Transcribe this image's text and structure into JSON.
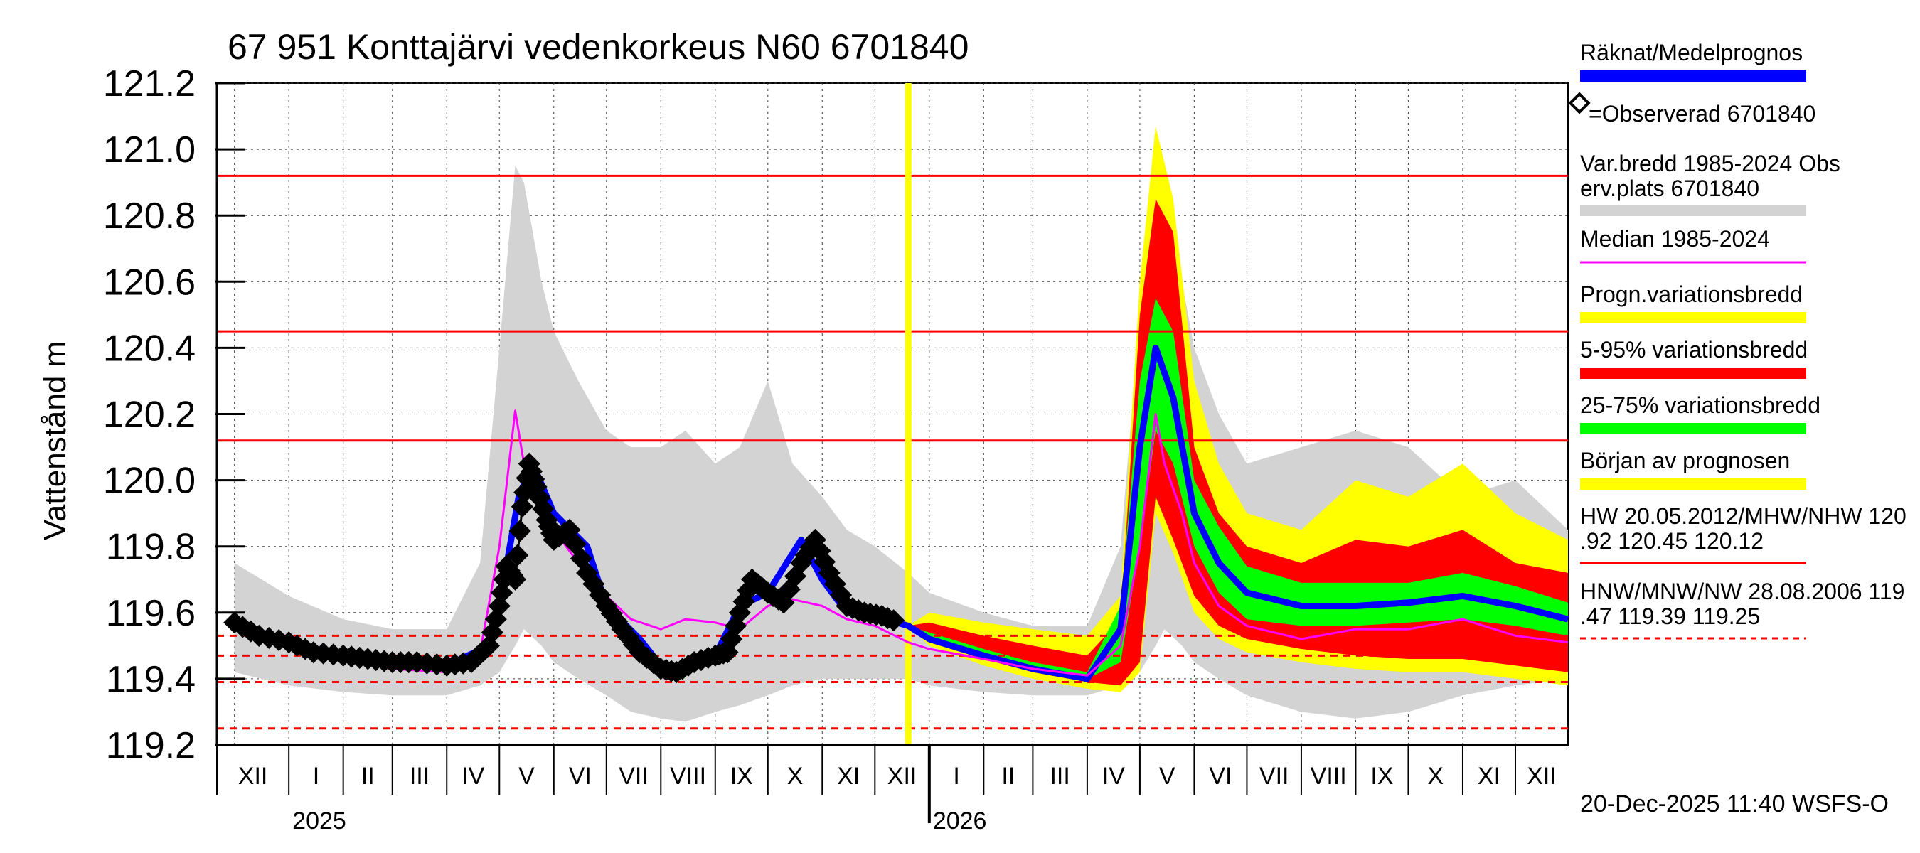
{
  "chart_data": {
    "type": "area",
    "title": "67 951 Konttajärvi vedenkorkeus N60 6701840",
    "ylabel": "Vattenstånd m",
    "ylim": [
      119.2,
      121.2
    ],
    "yticks": [
      "121.2",
      "121.0",
      "120.8",
      "120.6",
      "120.4",
      "120.2",
      "120.0",
      "119.8",
      "119.6",
      "119.4",
      "119.2"
    ],
    "months": [
      "XII",
      "I",
      "II",
      "III",
      "IV",
      "V",
      "VI",
      "VII",
      "VIII",
      "IX",
      "X",
      "XI",
      "XII",
      "I",
      "II",
      "III",
      "IV",
      "V",
      "VI",
      "VII",
      "VIII",
      "IX",
      "X",
      "XI",
      "XII"
    ],
    "years": [
      "2025",
      "2026"
    ],
    "forecast_start": "2025-12-20",
    "reference_lines": [
      {
        "label": "HW 20.05.2012",
        "value": 120.92,
        "style": "solid"
      },
      {
        "label": "MHW",
        "value": 120.45,
        "style": "solid"
      },
      {
        "label": "NHW",
        "value": 120.12,
        "style": "solid"
      },
      {
        "label": "HNW",
        "value": 119.47,
        "style": "dashed"
      },
      {
        "label": "MNW",
        "value": 119.39,
        "style": "dashed"
      },
      {
        "label": "NW 28.08.2006",
        "value": 119.25,
        "style": "dashed"
      },
      {
        "label": "",
        "value": 119.53,
        "style": "dashed"
      }
    ],
    "series": [
      {
        "name": "Räknat/Medelprognos",
        "color": "#0000ff",
        "x": [
          "2024-12-01",
          "2025-01-01",
          "2025-02-01",
          "2025-03-01",
          "2025-04-01",
          "2025-04-25",
          "2025-05-05",
          "2025-05-12",
          "2025-05-20",
          "2025-06-01",
          "2025-06-20",
          "2025-07-01",
          "2025-07-20",
          "2025-08-01",
          "2025-08-15",
          "2025-09-01",
          "2025-09-15",
          "2025-10-01",
          "2025-10-20",
          "2025-11-01",
          "2025-11-15",
          "2025-12-01",
          "2025-12-20",
          "2026-01-01",
          "2026-02-01",
          "2026-03-01",
          "2026-04-01",
          "2026-04-20",
          "2026-05-01",
          "2026-05-10",
          "2026-05-20",
          "2026-06-01",
          "2026-06-15",
          "2026-07-01",
          "2026-08-01",
          "2026-09-01",
          "2026-10-01",
          "2026-11-01",
          "2026-12-01",
          "2026-12-31"
        ],
        "y": [
          119.57,
          119.51,
          119.47,
          119.45,
          119.44,
          119.5,
          119.74,
          119.95,
          120.05,
          119.9,
          119.8,
          119.62,
          119.52,
          119.44,
          119.43,
          119.47,
          119.62,
          119.66,
          119.82,
          119.7,
          119.6,
          119.59,
          119.56,
          119.52,
          119.47,
          119.43,
          119.4,
          119.55,
          120.1,
          120.4,
          120.25,
          119.9,
          119.75,
          119.66,
          119.62,
          119.62,
          119.63,
          119.65,
          119.62,
          119.58
        ]
      },
      {
        "name": "=Observerad 6701840",
        "color": "#000000",
        "x": [
          "2024-12-01",
          "2024-12-15",
          "2025-01-01",
          "2025-01-15",
          "2025-02-01",
          "2025-02-15",
          "2025-03-01",
          "2025-03-15",
          "2025-04-01",
          "2025-04-15",
          "2025-04-25",
          "2025-05-01",
          "2025-05-05",
          "2025-05-10",
          "2025-05-14",
          "2025-05-18",
          "2025-05-22",
          "2025-05-28",
          "2025-06-01",
          "2025-06-10",
          "2025-06-20",
          "2025-07-01",
          "2025-07-10",
          "2025-07-20",
          "2025-08-01",
          "2025-08-10",
          "2025-08-20",
          "2025-09-01",
          "2025-09-08",
          "2025-09-15",
          "2025-09-22",
          "2025-10-01",
          "2025-10-10",
          "2025-10-20",
          "2025-10-28",
          "2025-11-05",
          "2025-11-15",
          "2025-11-25",
          "2025-12-05",
          "2025-12-15"
        ],
        "y": [
          119.57,
          119.53,
          119.51,
          119.48,
          119.47,
          119.46,
          119.45,
          119.45,
          119.44,
          119.45,
          119.5,
          119.62,
          119.74,
          119.7,
          119.92,
          120.05,
          119.98,
          119.88,
          119.82,
          119.85,
          119.72,
          119.62,
          119.55,
          119.48,
          119.43,
          119.42,
          119.45,
          119.47,
          119.48,
          119.6,
          119.7,
          119.66,
          119.63,
          119.75,
          119.82,
          119.72,
          119.62,
          119.6,
          119.59,
          119.57
        ]
      },
      {
        "name": "Median 1985-2024",
        "color": "#ff00ff",
        "x": [
          "2024-12-01",
          "2025-01-01",
          "2025-02-01",
          "2025-03-01",
          "2025-04-01",
          "2025-04-20",
          "2025-05-01",
          "2025-05-10",
          "2025-05-15",
          "2025-05-25",
          "2025-06-01",
          "2025-06-15",
          "2025-07-01",
          "2025-07-15",
          "2025-08-01",
          "2025-08-15",
          "2025-09-01",
          "2025-09-15",
          "2025-10-01",
          "2025-10-15",
          "2025-11-01",
          "2025-11-15",
          "2025-12-01",
          "2025-12-20",
          "2026-01-01",
          "2026-02-01",
          "2026-03-01",
          "2026-04-01",
          "2026-04-20",
          "2026-05-01",
          "2026-05-10",
          "2026-05-15",
          "2026-05-25",
          "2026-06-01",
          "2026-06-15",
          "2026-07-01",
          "2026-08-01",
          "2026-09-01",
          "2026-10-01",
          "2026-11-01",
          "2026-12-01",
          "2026-12-31"
        ],
        "y": [
          119.55,
          119.5,
          119.46,
          119.43,
          119.42,
          119.48,
          119.8,
          120.21,
          120.05,
          119.95,
          119.85,
          119.75,
          119.65,
          119.58,
          119.55,
          119.58,
          119.57,
          119.55,
          119.62,
          119.64,
          119.62,
          119.58,
          119.56,
          119.51,
          119.49,
          119.46,
          119.43,
          119.41,
          119.5,
          119.8,
          120.2,
          120.05,
          119.9,
          119.75,
          119.62,
          119.56,
          119.52,
          119.55,
          119.55,
          119.58,
          119.53,
          119.51
        ]
      }
    ],
    "bands": [
      {
        "name": "Var.bredd 1985-2024 Observ.plats 6701840",
        "color": "#d3d3d3",
        "x": [
          "2024-12-01",
          "2025-01-01",
          "2025-02-01",
          "2025-03-01",
          "2025-04-01",
          "2025-04-20",
          "2025-05-01",
          "2025-05-10",
          "2025-05-15",
          "2025-05-25",
          "2025-06-01",
          "2025-06-15",
          "2025-07-01",
          "2025-07-15",
          "2025-08-01",
          "2025-08-15",
          "2025-09-01",
          "2025-09-15",
          "2025-10-01",
          "2025-10-15",
          "2025-11-01",
          "2025-11-15",
          "2025-12-01",
          "2025-12-20",
          "2026-01-01",
          "2026-02-01",
          "2026-03-01",
          "2026-04-01",
          "2026-04-20",
          "2026-05-01",
          "2026-05-10",
          "2026-05-15",
          "2026-05-25",
          "2026-06-01",
          "2026-06-15",
          "2026-07-01",
          "2026-08-01",
          "2026-09-01",
          "2026-10-01",
          "2026-11-01",
          "2026-12-01",
          "2026-12-31"
        ],
        "low": [
          119.42,
          119.38,
          119.36,
          119.35,
          119.35,
          119.38,
          119.42,
          119.5,
          119.55,
          119.5,
          119.45,
          119.4,
          119.35,
          119.3,
          119.28,
          119.27,
          119.3,
          119.32,
          119.35,
          119.38,
          119.4,
          119.4,
          119.4,
          119.4,
          119.38,
          119.36,
          119.35,
          119.35,
          119.38,
          119.42,
          119.5,
          119.55,
          119.5,
          119.45,
          119.4,
          119.35,
          119.3,
          119.28,
          119.3,
          119.35,
          119.38,
          119.4
        ],
        "high": [
          119.75,
          119.65,
          119.58,
          119.55,
          119.55,
          119.75,
          120.4,
          120.95,
          120.9,
          120.6,
          120.45,
          120.3,
          120.15,
          120.1,
          120.1,
          120.15,
          120.05,
          120.1,
          120.3,
          120.05,
          119.95,
          119.85,
          119.8,
          119.72,
          119.66,
          119.6,
          119.56,
          119.56,
          119.8,
          120.5,
          120.95,
          120.9,
          120.6,
          120.4,
          120.2,
          120.05,
          120.1,
          120.15,
          120.1,
          119.95,
          120.0,
          119.85
        ]
      },
      {
        "name": "Progn.variationsbredd",
        "color": "#ffff00",
        "x": [
          "2025-12-20",
          "2026-01-01",
          "2026-02-01",
          "2026-03-01",
          "2026-04-01",
          "2026-04-20",
          "2026-05-01",
          "2026-05-10",
          "2026-05-20",
          "2026-06-01",
          "2026-06-15",
          "2026-07-01",
          "2026-08-01",
          "2026-09-01",
          "2026-10-01",
          "2026-11-01",
          "2026-12-01",
          "2026-12-31"
        ],
        "low": [
          119.56,
          119.5,
          119.44,
          119.4,
          119.37,
          119.36,
          119.42,
          119.9,
          119.78,
          119.6,
          119.52,
          119.48,
          119.45,
          119.43,
          119.42,
          119.42,
          119.4,
          119.38
        ],
        "high": [
          119.56,
          119.6,
          119.57,
          119.55,
          119.53,
          119.65,
          120.6,
          121.07,
          120.85,
          120.3,
          120.05,
          119.9,
          119.85,
          120.0,
          119.95,
          120.05,
          119.9,
          119.82
        ]
      },
      {
        "name": "5-95% variationsbredd",
        "color": "#ff0000",
        "x": [
          "2025-12-20",
          "2026-01-01",
          "2026-02-01",
          "2026-03-01",
          "2026-04-01",
          "2026-04-20",
          "2026-05-01",
          "2026-05-10",
          "2026-05-20",
          "2026-06-01",
          "2026-06-15",
          "2026-07-01",
          "2026-08-01",
          "2026-09-01",
          "2026-10-01",
          "2026-11-01",
          "2026-12-01",
          "2026-12-31"
        ],
        "low": [
          119.56,
          119.51,
          119.46,
          119.42,
          119.39,
          119.38,
          119.45,
          119.95,
          119.82,
          119.65,
          119.56,
          119.52,
          119.49,
          119.47,
          119.46,
          119.46,
          119.44,
          119.42
        ],
        "high": [
          119.56,
          119.57,
          119.53,
          119.5,
          119.47,
          119.58,
          120.5,
          120.85,
          120.75,
          120.1,
          119.9,
          119.8,
          119.75,
          119.82,
          119.8,
          119.85,
          119.75,
          119.72
        ]
      },
      {
        "name": "25-75% variationsbredd",
        "color": "#00ff00",
        "x": [
          "2025-12-20",
          "2026-01-01",
          "2026-02-01",
          "2026-03-01",
          "2026-04-01",
          "2026-04-20",
          "2026-05-01",
          "2026-05-10",
          "2026-05-20",
          "2026-06-01",
          "2026-06-15",
          "2026-07-01",
          "2026-08-01",
          "2026-09-01",
          "2026-10-01",
          "2026-11-01",
          "2026-12-01",
          "2026-12-31"
        ],
        "low": [
          119.56,
          119.52,
          119.47,
          119.43,
          119.4,
          119.45,
          119.8,
          120.15,
          120.05,
          119.8,
          119.66,
          119.58,
          119.56,
          119.56,
          119.57,
          119.58,
          119.56,
          119.53
        ],
        "high": [
          119.56,
          119.54,
          119.49,
          119.45,
          119.42,
          119.62,
          120.3,
          120.55,
          120.45,
          120.0,
          119.86,
          119.74,
          119.69,
          119.69,
          119.69,
          119.72,
          119.68,
          119.63
        ]
      }
    ],
    "legend": [
      {
        "label": "Räknat/Medelprognos",
        "color": "#0000ff",
        "kind": "bar"
      },
      {
        "label": "=Observerad 6701840",
        "color": "#000000",
        "kind": "marker"
      },
      {
        "label": "Var.bredd 1985-2024   Obs",
        "label2": "erv.plats 6701840",
        "color": "#d3d3d3",
        "kind": "bar"
      },
      {
        "label": "Median 1985-2024",
        "color": "#ff00ff",
        "kind": "line"
      },
      {
        "label": "Progn.variationsbredd",
        "color": "#ffff00",
        "kind": "bar"
      },
      {
        "label": "5-95% variationsbredd",
        "color": "#ff0000",
        "kind": "bar"
      },
      {
        "label": "25-75% variationsbredd",
        "color": "#00ff00",
        "kind": "bar"
      },
      {
        "label": "Början av prognosen",
        "color": "#ffff00",
        "kind": "bar"
      },
      {
        "label": "HW 20.05.2012/MHW/NHW 120",
        "label2": ".92 120.45 120.12",
        "color": "#ff0000",
        "kind": "line"
      },
      {
        "label": "HNW/MNW/NW 28.08.2006 119",
        "label2": ".47 119.39 119.25",
        "color": "#ff0000",
        "kind": "dashed"
      }
    ],
    "footer": "20-Dec-2025 11:40 WSFS-O"
  }
}
